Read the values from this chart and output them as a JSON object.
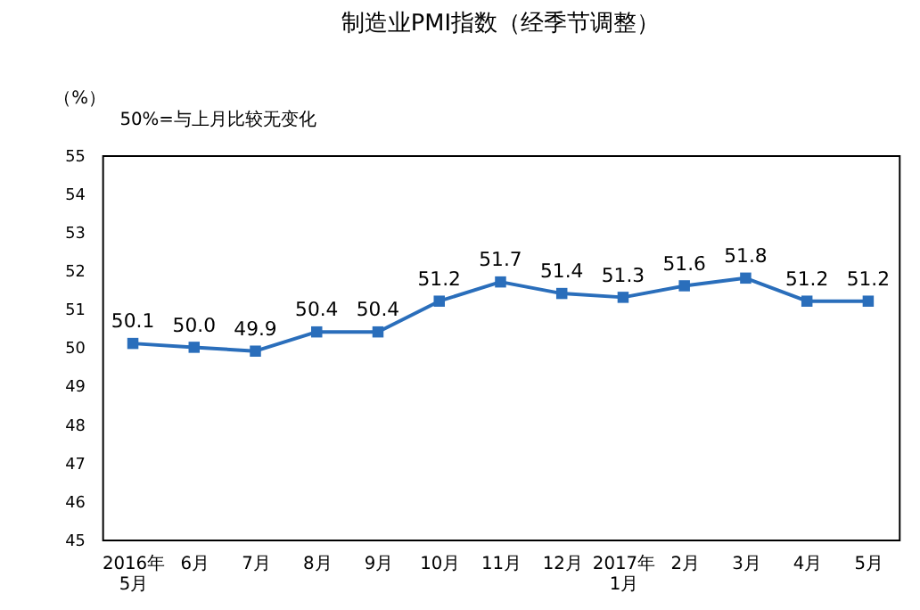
{
  "chart_data": {
    "type": "line",
    "title": "制造业PMI指数（经季节调整）",
    "ylabel": "（%）",
    "annotations": [
      "50%=与上月比较无变化"
    ],
    "categories": [
      "2016年\n5月",
      "6月",
      "7月",
      "8月",
      "9月",
      "10月",
      "11月",
      "12月",
      "2017年\n1月",
      "2月",
      "3月",
      "4月",
      "5月"
    ],
    "series": [
      {
        "color": "#2a6ebb",
        "values": [
          50.1,
          50.0,
          49.9,
          50.4,
          50.4,
          51.2,
          51.7,
          51.4,
          51.3,
          51.6,
          51.8,
          51.2,
          51.2
        ],
        "value_labels": [
          "50.1",
          "50.0",
          "49.9",
          "50.4",
          "50.4",
          "51.2",
          "51.7",
          "51.4",
          "51.3",
          "51.6",
          "51.8",
          "51.2",
          "51.2"
        ]
      }
    ],
    "ylim": [
      45,
      55
    ],
    "yticks": [
      45,
      46,
      47,
      48,
      49,
      50,
      51,
      52,
      53,
      54,
      55
    ],
    "grid": false,
    "marker": "square",
    "line_style": "solid"
  }
}
